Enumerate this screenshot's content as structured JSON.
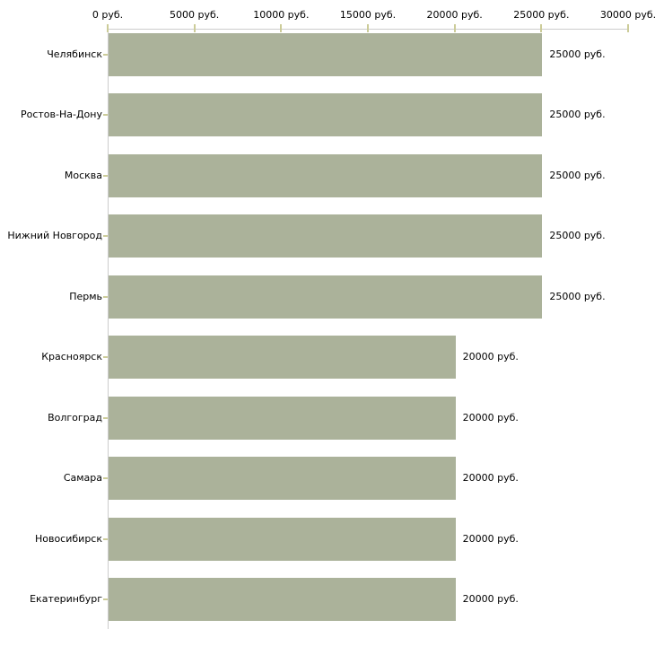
{
  "chart_data": {
    "type": "bar",
    "orientation": "horizontal",
    "title": "",
    "xlabel": "",
    "ylabel": "",
    "unit": "руб.",
    "categories": [
      "Челябинск",
      "Ростов-На-Дону",
      "Москва",
      "Нижний Новгород",
      "Пермь",
      "Красноярск",
      "Волгоград",
      "Самара",
      "Новосибирск",
      "Екатеринбург"
    ],
    "values": [
      25000,
      25000,
      25000,
      25000,
      25000,
      20000,
      20000,
      20000,
      20000,
      20000
    ],
    "value_labels": [
      "25000 руб.",
      "25000 руб.",
      "25000 руб.",
      "25000 руб.",
      "25000 руб.",
      "20000 руб.",
      "20000 руб.",
      "20000 руб.",
      "20000 руб.",
      "20000 руб."
    ],
    "x_tick_values": [
      0,
      5000,
      10000,
      15000,
      20000,
      25000,
      30000
    ],
    "x_tick_labels": [
      "0 руб.",
      "5000 руб.",
      "10000 руб.",
      "15000 руб.",
      "20000 руб.",
      "25000 руб.",
      "30000 руб."
    ],
    "xlim": [
      0,
      30000
    ],
    "grid": false,
    "legend": false,
    "colors": {
      "bar": "#abb29a",
      "axis_line": "#cccccc",
      "tick_mark": "#cccc99",
      "text": "#000000",
      "background": "#ffffff"
    }
  }
}
